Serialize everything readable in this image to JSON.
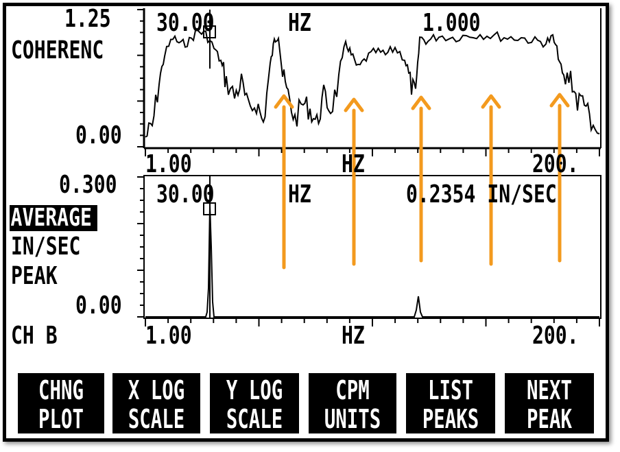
{
  "top_panel": {
    "y_max": "1.25",
    "y_min": "0.00",
    "y_label": "COHERENC",
    "cursor_freq": "30.00",
    "cursor_unit": "HZ",
    "cursor_value": "1.000",
    "x_min": "1.00",
    "x_unit": "HZ",
    "x_max": "200."
  },
  "bottom_panel": {
    "y_max": "0.300",
    "y_min": "0.00",
    "mode_badge": "AVERAGE",
    "units_label": "IN/SEC",
    "detect_label": "PEAK",
    "channel_label": "CH B",
    "cursor_freq": "30.00",
    "cursor_unit": "HZ",
    "cursor_value": "0.2354 IN/SEC",
    "x_min": "1.00",
    "x_unit": "HZ",
    "x_max": "200."
  },
  "softkeys": [
    {
      "line1": "CHNG",
      "line2": "PLOT"
    },
    {
      "line1": "X LOG",
      "line2": "SCALE"
    },
    {
      "line1": "Y LOG",
      "line2": "SCALE"
    },
    {
      "line1": "CPM",
      "line2": "UNITS"
    },
    {
      "line1": "LIST",
      "line2": "PEAKS"
    },
    {
      "line1": "NEXT",
      "line2": "PEAK"
    }
  ],
  "annotation_arrows": {
    "count": 5,
    "color": "#f39a1e"
  },
  "colors": {
    "screen": "#ffffff",
    "ink": "#000000",
    "arrow": "#f39a1e"
  }
}
